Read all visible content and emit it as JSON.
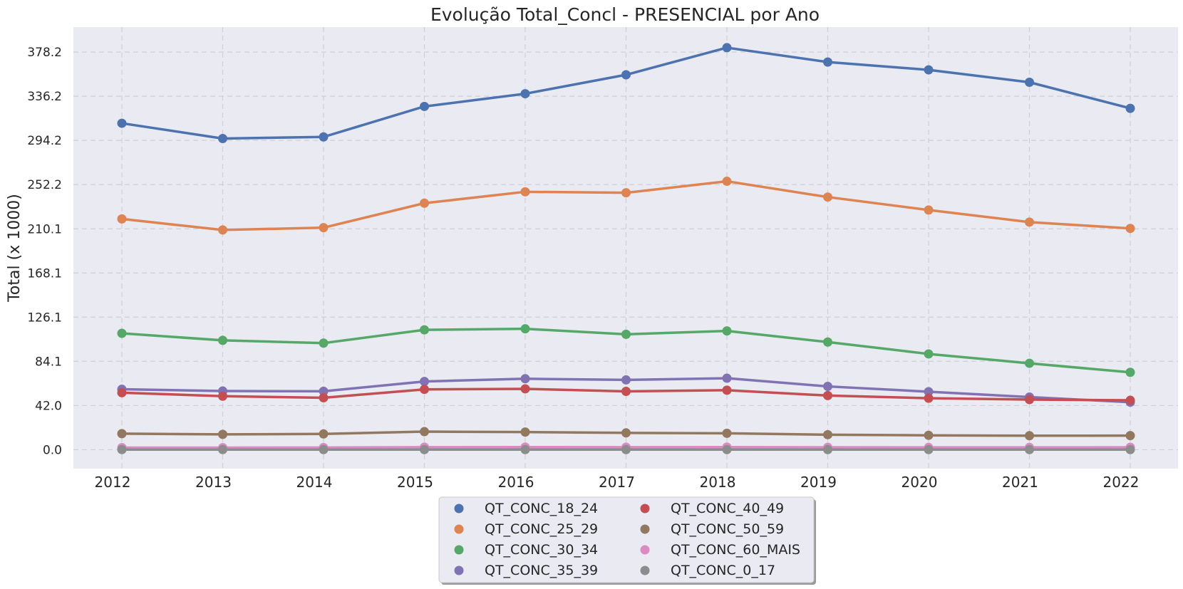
{
  "chart_data": {
    "type": "line",
    "title": "Evolução Total_Concl - PRESENCIAL por Ano",
    "xlabel": "",
    "ylabel": "Total (x 1000)",
    "x": [
      "2012",
      "2013",
      "2014",
      "2015",
      "2016",
      "2017",
      "2018",
      "2019",
      "2020",
      "2021",
      "2022"
    ],
    "yticks": [
      "0.0",
      "42.0",
      "84.1",
      "126.1",
      "168.1",
      "210.1",
      "252.2",
      "294.2",
      "336.2",
      "378.2"
    ],
    "ylim": [
      -18,
      402
    ],
    "grid": true,
    "legend_position": "bottom-center",
    "series": [
      {
        "name": "QT_CONC_18_24",
        "color": "#4c72b0",
        "values": [
          310.5,
          296.0,
          297.5,
          326.5,
          338.6,
          356.6,
          382.4,
          368.7,
          361.3,
          349.5,
          324.7
        ]
      },
      {
        "name": "QT_CONC_25_29",
        "color": "#dd8452",
        "values": [
          219.5,
          209.0,
          211.2,
          234.5,
          245.3,
          244.4,
          255.3,
          240.3,
          228.0,
          216.5,
          210.5
        ]
      },
      {
        "name": "QT_CONC_30_34",
        "color": "#55a868",
        "values": [
          110.7,
          104.0,
          101.4,
          114.0,
          115.0,
          109.8,
          113.0,
          102.4,
          91.1,
          82.2,
          73.6
        ]
      },
      {
        "name": "QT_CONC_35_39",
        "color": "#8172b3",
        "values": [
          57.5,
          55.8,
          55.6,
          64.9,
          67.5,
          66.4,
          68.0,
          60.2,
          55.2,
          50.1,
          45.2
        ]
      },
      {
        "name": "QT_CONC_40_49",
        "color": "#c44e52",
        "values": [
          54.2,
          50.9,
          49.4,
          57.4,
          57.9,
          55.5,
          56.6,
          51.5,
          49.0,
          47.7,
          47.0
        ]
      },
      {
        "name": "QT_CONC_50_59",
        "color": "#937860",
        "values": [
          15.3,
          14.6,
          15.0,
          17.2,
          16.8,
          16.0,
          15.6,
          14.3,
          13.7,
          13.3,
          13.4
        ]
      },
      {
        "name": "QT_CONC_60_MAIS",
        "color": "#da8bc3",
        "values": [
          2.0,
          2.0,
          2.1,
          2.4,
          2.5,
          2.4,
          2.5,
          2.3,
          2.2,
          2.2,
          2.3
        ]
      },
      {
        "name": "QT_CONC_0_17",
        "color": "#8c8c8c",
        "values": [
          0.1,
          0.1,
          0.1,
          0.1,
          0.1,
          0.1,
          0.1,
          0.1,
          0.1,
          0.1,
          0.1
        ]
      }
    ]
  }
}
